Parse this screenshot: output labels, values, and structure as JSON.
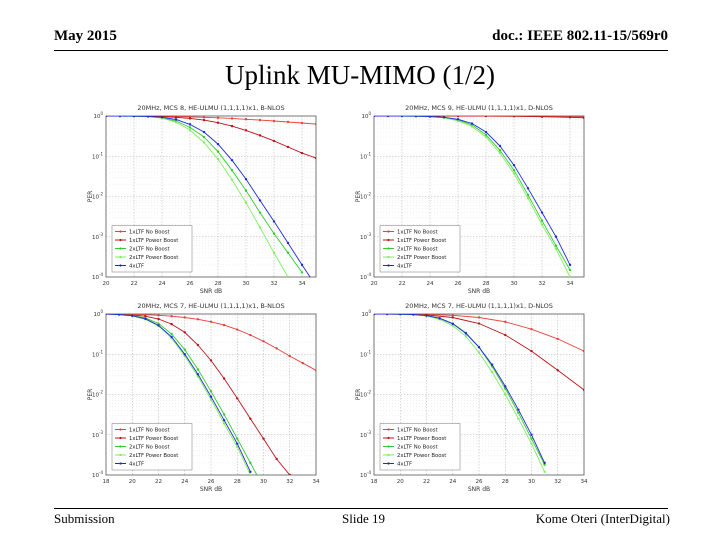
{
  "header": {
    "date": "May 2015",
    "doc": "doc.: IEEE 802.11-15/569r0"
  },
  "slide": {
    "title": "Uplink MU-MIMO (1/2)"
  },
  "footer": {
    "left": "Submission",
    "center": "Slide 19",
    "right": "Kome Oteri (InterDigital)"
  },
  "colors": {
    "noBoost1x": "#e8413c",
    "boost1x": "#b8151a",
    "noBoost2x": "#34c934",
    "boost2x": "#7fee5f",
    "ltf4x": "#1d2bd6"
  },
  "chart_data": [
    {
      "type": "line",
      "title": "20MHz, MCS 8, HE-ULMU (1,1,1,1)x1, B-NLOS",
      "xlabel": "SNR dB",
      "ylabel": "PER",
      "xlim": [
        20,
        35
      ],
      "ylim": [
        0.0001,
        1
      ],
      "xticks": [
        20,
        22,
        24,
        26,
        28,
        30,
        32,
        34
      ],
      "xtick_labels": [
        "20",
        "22",
        "24",
        "26",
        "28",
        "30",
        "32",
        "34"
      ],
      "ytick_labels": [
        "10^0",
        "10^-1",
        "10^-2",
        "10^-3",
        "10^-4"
      ],
      "series": [
        {
          "name": "1xLTF No Boost",
          "color": "#e8413c",
          "x": [
            20,
            21,
            22,
            23,
            24,
            25,
            26,
            27,
            28,
            29,
            30,
            31,
            32,
            33,
            34,
            35
          ],
          "y": [
            1,
            1,
            1,
            0.99,
            0.98,
            0.97,
            0.95,
            0.93,
            0.9,
            0.87,
            0.83,
            0.79,
            0.75,
            0.71,
            0.67,
            0.63
          ]
        },
        {
          "name": "1xLTF Power Boost",
          "color": "#b8151a",
          "x": [
            20,
            21,
            22,
            23,
            24,
            25,
            26,
            27,
            28,
            29,
            30,
            31,
            32,
            33,
            34,
            35
          ],
          "y": [
            1,
            1,
            1,
            0.99,
            0.97,
            0.93,
            0.87,
            0.79,
            0.68,
            0.56,
            0.44,
            0.33,
            0.24,
            0.17,
            0.12,
            0.09
          ]
        },
        {
          "name": "2xLTF No Boost",
          "color": "#34c934",
          "x": [
            20,
            21,
            22,
            23,
            24,
            25,
            26,
            27,
            28,
            29,
            30,
            31,
            32,
            33,
            34
          ],
          "y": [
            1,
            1,
            0.99,
            0.97,
            0.9,
            0.75,
            0.52,
            0.3,
            0.13,
            0.045,
            0.014,
            0.004,
            0.0012,
            0.0004,
            0.00013
          ]
        },
        {
          "name": "2xLTF Power Boost",
          "color": "#7fee5f",
          "x": [
            20,
            21,
            22,
            23,
            24,
            25,
            26,
            27,
            28,
            29,
            30,
            31,
            32,
            33
          ],
          "y": [
            1,
            1,
            0.99,
            0.96,
            0.88,
            0.7,
            0.45,
            0.22,
            0.085,
            0.026,
            0.007,
            0.0017,
            0.0004,
            0.0001
          ]
        },
        {
          "name": "4xLTF",
          "color": "#1d2bd6",
          "x": [
            20,
            21,
            22,
            23,
            24,
            25,
            26,
            27,
            28,
            29,
            30,
            31,
            32,
            33,
            34,
            35
          ],
          "y": [
            1,
            1,
            0.99,
            0.98,
            0.93,
            0.82,
            0.62,
            0.4,
            0.2,
            0.08,
            0.027,
            0.008,
            0.0024,
            0.0007,
            0.0002,
            6e-05
          ]
        }
      ]
    },
    {
      "type": "line",
      "title": "20MHz, MCS 9, HE-ULMU (1,1,1,1)x1, D-NLOS",
      "xlabel": "SNR dB",
      "ylabel": "PER",
      "xlim": [
        20,
        35
      ],
      "ylim": [
        0.0001,
        1
      ],
      "xticks": [
        20,
        22,
        24,
        26,
        28,
        30,
        32,
        34
      ],
      "xtick_labels": [
        "20",
        "22",
        "24",
        "26",
        "28",
        "30",
        "32",
        "34"
      ],
      "ytick_labels": [
        "10^0",
        "10^-1",
        "10^-2",
        "10^-3",
        "10^-4"
      ],
      "series": [
        {
          "name": "1xLTF No Boost",
          "color": "#e8413c",
          "x": [
            20,
            22,
            24,
            26,
            28,
            30,
            32,
            34,
            35
          ],
          "y": [
            1,
            1,
            1,
            1,
            1,
            0.99,
            0.98,
            0.96,
            0.95
          ]
        },
        {
          "name": "1xLTF Power Boost",
          "color": "#b8151a",
          "x": [
            20,
            22,
            24,
            26,
            28,
            30,
            32,
            34,
            35
          ],
          "y": [
            1,
            1,
            1,
            1,
            1,
            0.99,
            0.96,
            0.93,
            0.9
          ]
        },
        {
          "name": "2xLTF No Boost",
          "color": "#34c934",
          "x": [
            20,
            21,
            22,
            23,
            24,
            25,
            26,
            27,
            28,
            29,
            30,
            31,
            32,
            33,
            34
          ],
          "y": [
            1,
            1,
            1,
            0.99,
            0.97,
            0.92,
            0.8,
            0.6,
            0.34,
            0.14,
            0.045,
            0.011,
            0.0025,
            0.0006,
            0.00015
          ]
        },
        {
          "name": "2xLTF Power Boost",
          "color": "#7fee5f",
          "x": [
            20,
            21,
            22,
            23,
            24,
            25,
            26,
            27,
            28,
            29,
            30,
            31,
            32,
            33,
            34
          ],
          "y": [
            1,
            1,
            1,
            0.99,
            0.96,
            0.9,
            0.76,
            0.55,
            0.3,
            0.12,
            0.037,
            0.009,
            0.002,
            0.0005,
            0.0001
          ]
        },
        {
          "name": "4xLTF",
          "color": "#1d2bd6",
          "x": [
            20,
            21,
            22,
            23,
            24,
            25,
            26,
            27,
            28,
            29,
            30,
            31,
            32,
            33,
            34
          ],
          "y": [
            1,
            1,
            1,
            0.99,
            0.97,
            0.93,
            0.83,
            0.65,
            0.4,
            0.18,
            0.06,
            0.016,
            0.004,
            0.001,
            0.0002
          ]
        }
      ]
    },
    {
      "type": "line",
      "title": "20MHz, MCS 7, HE-ULMU (1,1,1,1)x1, B-NLOS",
      "xlabel": "SNR dB",
      "ylabel": "PER",
      "xlim": [
        18,
        34
      ],
      "ylim": [
        0.0001,
        1
      ],
      "xticks": [
        18,
        20,
        22,
        24,
        26,
        28,
        30,
        32,
        34
      ],
      "xtick_labels": [
        "18",
        "20",
        "22",
        "24",
        "26",
        "28",
        "30",
        "32",
        "34"
      ],
      "ytick_labels": [
        "10^0",
        "10^-1",
        "10^-2",
        "10^-3",
        "10^-4"
      ],
      "series": [
        {
          "name": "1xLTF No Boost",
          "color": "#e8413c",
          "x": [
            18,
            19,
            20,
            21,
            22,
            23,
            24,
            25,
            26,
            27,
            28,
            29,
            30,
            31,
            32,
            33,
            34
          ],
          "y": [
            1,
            0.99,
            0.98,
            0.96,
            0.93,
            0.88,
            0.82,
            0.74,
            0.64,
            0.53,
            0.41,
            0.3,
            0.21,
            0.14,
            0.09,
            0.06,
            0.04
          ]
        },
        {
          "name": "1xLTF Power Boost",
          "color": "#b8151a",
          "x": [
            18,
            19,
            20,
            21,
            22,
            23,
            24,
            25,
            26,
            27,
            28,
            29,
            30,
            31,
            32,
            33
          ],
          "y": [
            1,
            0.98,
            0.95,
            0.88,
            0.75,
            0.56,
            0.35,
            0.17,
            0.07,
            0.025,
            0.008,
            0.0025,
            0.0008,
            0.00025,
            0.0001,
            3e-05
          ]
        },
        {
          "name": "2xLTF No Boost",
          "color": "#34c934",
          "x": [
            18,
            19,
            20,
            21,
            22,
            23,
            24,
            25,
            26,
            27,
            28,
            29,
            30
          ],
          "y": [
            1,
            0.97,
            0.92,
            0.8,
            0.58,
            0.32,
            0.13,
            0.042,
            0.012,
            0.0032,
            0.0008,
            0.0002,
            5e-05
          ]
        },
        {
          "name": "2xLTF Power Boost",
          "color": "#7fee5f",
          "x": [
            18,
            19,
            20,
            21,
            22,
            23,
            24,
            25,
            26,
            27,
            28,
            29
          ],
          "y": [
            1,
            0.97,
            0.9,
            0.74,
            0.5,
            0.25,
            0.09,
            0.028,
            0.0075,
            0.0019,
            0.0005,
            0.0001
          ]
        },
        {
          "name": "4xLTF",
          "color": "#1d2bd6",
          "x": [
            18,
            19,
            20,
            21,
            22,
            23,
            24,
            25,
            26,
            27,
            28,
            29
          ],
          "y": [
            1,
            0.97,
            0.9,
            0.76,
            0.52,
            0.27,
            0.1,
            0.032,
            0.0088,
            0.0023,
            0.0006,
            0.00012
          ]
        }
      ]
    },
    {
      "type": "line",
      "title": "20MHz, MCS 7, HE-ULMU (1,1,1,1)x1, D-NLOS",
      "xlabel": "SNR dB",
      "ylabel": "PER",
      "xlim": [
        18,
        34
      ],
      "ylim": [
        0.0001,
        1
      ],
      "xticks": [
        18,
        20,
        22,
        24,
        26,
        28,
        30,
        32,
        34
      ],
      "xtick_labels": [
        "18",
        "20",
        "22",
        "24",
        "26",
        "28",
        "30",
        "32",
        "34"
      ],
      "ytick_labels": [
        "10^0",
        "10^-1",
        "10^-2",
        "10^-3",
        "10^-4"
      ],
      "series": [
        {
          "name": "1xLTF No Boost",
          "color": "#e8413c",
          "x": [
            18,
            20,
            22,
            24,
            26,
            28,
            30,
            32,
            34
          ],
          "y": [
            1,
            1,
            0.98,
            0.93,
            0.82,
            0.64,
            0.42,
            0.24,
            0.12
          ]
        },
        {
          "name": "1xLTF Power Boost",
          "color": "#b8151a",
          "x": [
            18,
            20,
            22,
            24,
            26,
            28,
            30,
            32,
            34
          ],
          "y": [
            1,
            0.99,
            0.95,
            0.82,
            0.58,
            0.3,
            0.12,
            0.04,
            0.013
          ]
        },
        {
          "name": "2xLTF No Boost",
          "color": "#34c934",
          "x": [
            18,
            19,
            20,
            21,
            22,
            23,
            24,
            25,
            26,
            27,
            28,
            29,
            30,
            31
          ],
          "y": [
            1,
            1,
            0.99,
            0.97,
            0.91,
            0.79,
            0.58,
            0.34,
            0.15,
            0.05,
            0.014,
            0.0035,
            0.0008,
            0.00018
          ]
        },
        {
          "name": "2xLTF Power Boost",
          "color": "#7fee5f",
          "x": [
            18,
            19,
            20,
            21,
            22,
            23,
            24,
            25,
            26,
            27,
            28,
            29,
            30,
            31
          ],
          "y": [
            1,
            1,
            0.99,
            0.96,
            0.89,
            0.74,
            0.51,
            0.28,
            0.11,
            0.036,
            0.01,
            0.0025,
            0.0006,
            0.00012
          ]
        },
        {
          "name": "4xLTF",
          "color": "#1d2bd6",
          "x": [
            18,
            19,
            20,
            21,
            22,
            23,
            24,
            25,
            26,
            27,
            28,
            29,
            30,
            31
          ],
          "y": [
            1,
            1,
            0.99,
            0.97,
            0.91,
            0.78,
            0.57,
            0.33,
            0.15,
            0.055,
            0.016,
            0.0042,
            0.001,
            0.0002
          ]
        }
      ]
    }
  ]
}
